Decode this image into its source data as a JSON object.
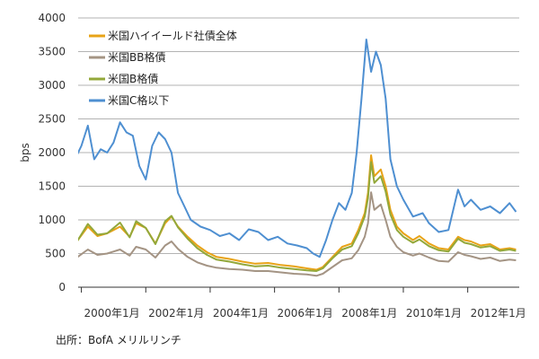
{
  "chart_data": {
    "type": "line",
    "ylabel": "bps",
    "xlabel": "",
    "ylim": [
      0,
      4000
    ],
    "yticks": [
      0,
      500,
      1000,
      1500,
      2000,
      2500,
      3000,
      3500,
      4000
    ],
    "xlim": [
      1999.9,
      2013.6
    ],
    "xticks": [
      {
        "x": 2000.0,
        "label": "2000年1月"
      },
      {
        "x": 2002.0,
        "label": "2002年1月"
      },
      {
        "x": 2004.0,
        "label": "2004年1月"
      },
      {
        "x": 2006.0,
        "label": "2006年1月"
      },
      {
        "x": 2008.0,
        "label": "2008年1月"
      },
      {
        "x": 2010.0,
        "label": "2010年1月"
      },
      {
        "x": 2012.0,
        "label": "2012年1月"
      }
    ],
    "grid": true,
    "legend_position": "top-left",
    "series": [
      {
        "name": "米国ハイイールド社債全体",
        "color": "#e8a317",
        "points": [
          [
            1999.0,
            470
          ],
          [
            1999.4,
            600
          ],
          [
            1999.8,
            640
          ],
          [
            2000.2,
            900
          ],
          [
            2000.5,
            760
          ],
          [
            2000.8,
            800
          ],
          [
            2001.2,
            900
          ],
          [
            2001.5,
            750
          ],
          [
            2001.7,
            950
          ],
          [
            2002.0,
            880
          ],
          [
            2002.3,
            650
          ],
          [
            2002.6,
            950
          ],
          [
            2002.8,
            1050
          ],
          [
            2003.0,
            900
          ],
          [
            2003.3,
            750
          ],
          [
            2003.6,
            620
          ],
          [
            2003.9,
            520
          ],
          [
            2004.2,
            450
          ],
          [
            2004.6,
            420
          ],
          [
            2005.0,
            380
          ],
          [
            2005.4,
            350
          ],
          [
            2005.8,
            360
          ],
          [
            2006.2,
            330
          ],
          [
            2006.6,
            310
          ],
          [
            2007.0,
            280
          ],
          [
            2007.3,
            260
          ],
          [
            2007.5,
            300
          ],
          [
            2007.8,
            450
          ],
          [
            2008.1,
            600
          ],
          [
            2008.4,
            650
          ],
          [
            2008.6,
            850
          ],
          [
            2008.8,
            1100
          ],
          [
            2008.9,
            1400
          ],
          [
            2009.0,
            1960
          ],
          [
            2009.1,
            1650
          ],
          [
            2009.3,
            1750
          ],
          [
            2009.45,
            1500
          ],
          [
            2009.6,
            1150
          ],
          [
            2009.8,
            900
          ],
          [
            2010.0,
            800
          ],
          [
            2010.3,
            700
          ],
          [
            2010.5,
            760
          ],
          [
            2010.8,
            650
          ],
          [
            2011.1,
            580
          ],
          [
            2011.4,
            560
          ],
          [
            2011.7,
            750
          ],
          [
            2011.9,
            700
          ],
          [
            2012.1,
            680
          ],
          [
            2012.4,
            620
          ],
          [
            2012.7,
            640
          ],
          [
            2013.0,
            560
          ],
          [
            2013.3,
            580
          ],
          [
            2013.5,
            560
          ]
        ]
      },
      {
        "name": "米国BB格債",
        "color": "#a49484",
        "points": [
          [
            1999.0,
            290
          ],
          [
            1999.4,
            380
          ],
          [
            1999.8,
            420
          ],
          [
            2000.2,
            560
          ],
          [
            2000.5,
            480
          ],
          [
            2000.8,
            500
          ],
          [
            2001.2,
            560
          ],
          [
            2001.5,
            470
          ],
          [
            2001.7,
            600
          ],
          [
            2002.0,
            560
          ],
          [
            2002.3,
            440
          ],
          [
            2002.6,
            620
          ],
          [
            2002.8,
            680
          ],
          [
            2003.0,
            570
          ],
          [
            2003.3,
            450
          ],
          [
            2003.6,
            370
          ],
          [
            2003.9,
            320
          ],
          [
            2004.2,
            290
          ],
          [
            2004.6,
            270
          ],
          [
            2005.0,
            260
          ],
          [
            2005.4,
            240
          ],
          [
            2005.8,
            240
          ],
          [
            2006.2,
            220
          ],
          [
            2006.6,
            200
          ],
          [
            2007.0,
            190
          ],
          [
            2007.3,
            170
          ],
          [
            2007.5,
            200
          ],
          [
            2007.8,
            300
          ],
          [
            2008.1,
            400
          ],
          [
            2008.4,
            430
          ],
          [
            2008.6,
            550
          ],
          [
            2008.8,
            750
          ],
          [
            2008.9,
            950
          ],
          [
            2009.0,
            1410
          ],
          [
            2009.1,
            1150
          ],
          [
            2009.3,
            1230
          ],
          [
            2009.45,
            1000
          ],
          [
            2009.6,
            750
          ],
          [
            2009.8,
            600
          ],
          [
            2010.0,
            520
          ],
          [
            2010.3,
            470
          ],
          [
            2010.5,
            500
          ],
          [
            2010.8,
            440
          ],
          [
            2011.1,
            390
          ],
          [
            2011.4,
            380
          ],
          [
            2011.7,
            520
          ],
          [
            2011.9,
            480
          ],
          [
            2012.1,
            460
          ],
          [
            2012.4,
            420
          ],
          [
            2012.7,
            440
          ],
          [
            2013.0,
            390
          ],
          [
            2013.3,
            410
          ],
          [
            2013.5,
            400
          ]
        ]
      },
      {
        "name": "米国B格債",
        "color": "#93a83a",
        "points": [
          [
            1999.0,
            490
          ],
          [
            1999.4,
            580
          ],
          [
            1999.8,
            630
          ],
          [
            2000.2,
            940
          ],
          [
            2000.5,
            780
          ],
          [
            2000.8,
            800
          ],
          [
            2001.2,
            960
          ],
          [
            2001.5,
            740
          ],
          [
            2001.7,
            980
          ],
          [
            2002.0,
            880
          ],
          [
            2002.3,
            640
          ],
          [
            2002.6,
            980
          ],
          [
            2002.8,
            1060
          ],
          [
            2003.0,
            890
          ],
          [
            2003.3,
            720
          ],
          [
            2003.6,
            580
          ],
          [
            2003.9,
            480
          ],
          [
            2004.2,
            410
          ],
          [
            2004.6,
            380
          ],
          [
            2005.0,
            340
          ],
          [
            2005.4,
            310
          ],
          [
            2005.8,
            320
          ],
          [
            2006.2,
            290
          ],
          [
            2006.6,
            270
          ],
          [
            2007.0,
            250
          ],
          [
            2007.3,
            240
          ],
          [
            2007.5,
            280
          ],
          [
            2007.8,
            430
          ],
          [
            2008.1,
            560
          ],
          [
            2008.4,
            610
          ],
          [
            2008.6,
            800
          ],
          [
            2008.8,
            1050
          ],
          [
            2008.9,
            1320
          ],
          [
            2009.0,
            1860
          ],
          [
            2009.1,
            1550
          ],
          [
            2009.3,
            1650
          ],
          [
            2009.45,
            1420
          ],
          [
            2009.6,
            1080
          ],
          [
            2009.8,
            850
          ],
          [
            2010.0,
            750
          ],
          [
            2010.3,
            660
          ],
          [
            2010.5,
            710
          ],
          [
            2010.8,
            610
          ],
          [
            2011.1,
            550
          ],
          [
            2011.4,
            530
          ],
          [
            2011.7,
            720
          ],
          [
            2011.9,
            660
          ],
          [
            2012.1,
            640
          ],
          [
            2012.4,
            590
          ],
          [
            2012.7,
            610
          ],
          [
            2013.0,
            540
          ],
          [
            2013.3,
            560
          ],
          [
            2013.5,
            540
          ]
        ]
      },
      {
        "name": "米国C格以下",
        "color": "#4e8fd1",
        "points": [
          [
            1999.0,
            1400
          ],
          [
            1999.2,
            1380
          ],
          [
            1999.5,
            1650
          ],
          [
            1999.7,
            1800
          ],
          [
            2000.0,
            2100
          ],
          [
            2000.2,
            2400
          ],
          [
            2000.4,
            1900
          ],
          [
            2000.6,
            2050
          ],
          [
            2000.8,
            2000
          ],
          [
            2001.0,
            2150
          ],
          [
            2001.2,
            2450
          ],
          [
            2001.4,
            2300
          ],
          [
            2001.6,
            2250
          ],
          [
            2001.8,
            1800
          ],
          [
            2002.0,
            1600
          ],
          [
            2002.2,
            2100
          ],
          [
            2002.4,
            2300
          ],
          [
            2002.6,
            2200
          ],
          [
            2002.8,
            2000
          ],
          [
            2003.0,
            1400
          ],
          [
            2003.2,
            1200
          ],
          [
            2003.4,
            1000
          ],
          [
            2003.7,
            900
          ],
          [
            2004.0,
            850
          ],
          [
            2004.3,
            760
          ],
          [
            2004.6,
            800
          ],
          [
            2004.9,
            700
          ],
          [
            2005.2,
            860
          ],
          [
            2005.5,
            820
          ],
          [
            2005.8,
            700
          ],
          [
            2006.1,
            750
          ],
          [
            2006.4,
            650
          ],
          [
            2006.7,
            620
          ],
          [
            2007.0,
            580
          ],
          [
            2007.2,
            500
          ],
          [
            2007.4,
            450
          ],
          [
            2007.6,
            700
          ],
          [
            2007.8,
            1000
          ],
          [
            2008.0,
            1250
          ],
          [
            2008.2,
            1150
          ],
          [
            2008.4,
            1400
          ],
          [
            2008.55,
            2000
          ],
          [
            2008.7,
            2800
          ],
          [
            2008.85,
            3680
          ],
          [
            2009.0,
            3200
          ],
          [
            2009.15,
            3500
          ],
          [
            2009.3,
            3300
          ],
          [
            2009.45,
            2800
          ],
          [
            2009.6,
            1900
          ],
          [
            2009.8,
            1500
          ],
          [
            2010.0,
            1300
          ],
          [
            2010.3,
            1050
          ],
          [
            2010.6,
            1100
          ],
          [
            2010.8,
            950
          ],
          [
            2011.1,
            820
          ],
          [
            2011.4,
            850
          ],
          [
            2011.7,
            1450
          ],
          [
            2011.9,
            1200
          ],
          [
            2012.1,
            1300
          ],
          [
            2012.4,
            1150
          ],
          [
            2012.7,
            1200
          ],
          [
            2013.0,
            1100
          ],
          [
            2013.3,
            1250
          ],
          [
            2013.5,
            1120
          ]
        ]
      }
    ]
  },
  "source_text": "出所：BofA メリルリンチ"
}
